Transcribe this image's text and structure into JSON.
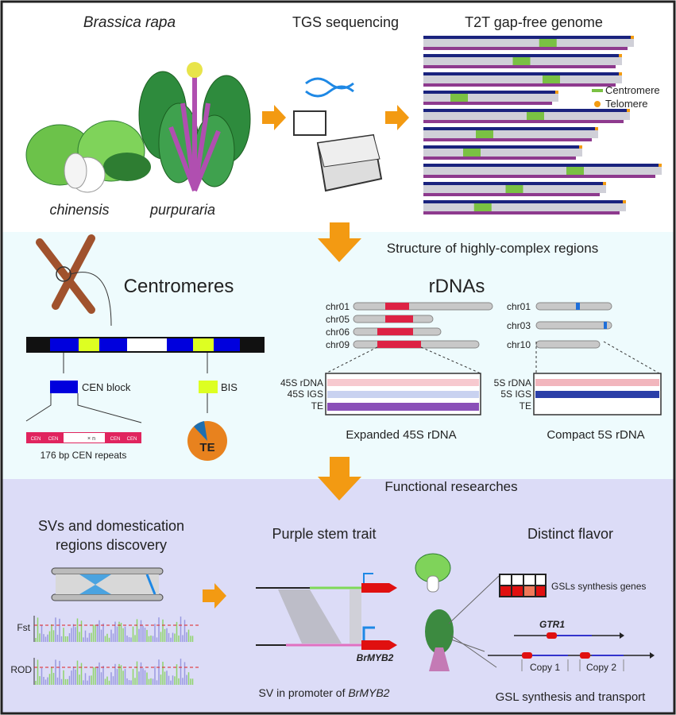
{
  "top": {
    "species_label": "Brassica rapa",
    "subspecies": [
      "chinensis",
      "purpuraria"
    ],
    "sequencing_label": "TGS sequencing",
    "genome_label": "T2T gap-free genome",
    "legend": [
      {
        "label": "Centromere",
        "color": "#7ac143"
      },
      {
        "label": "Telomere",
        "color": "#f39c12"
      }
    ]
  },
  "middle": {
    "section_title": "Structure of highly-complex regions",
    "centromeres": {
      "title": "Centromeres",
      "cen_block_label": "CEN block",
      "bis_label": "BIS",
      "cen_unit": "CEN",
      "repeat_marker": "× n",
      "repeats_label": "176 bp CEN repeats",
      "pie_label": "TE"
    },
    "rdnas": {
      "title": "rDNAs",
      "left_chromosomes": [
        "chr01",
        "chr05",
        "chr06",
        "chr09"
      ],
      "right_chromosomes": [
        "chr01",
        "chr03",
        "chr10"
      ],
      "left_tracks": [
        "45S rDNA",
        "45S IGS",
        "TE"
      ],
      "right_tracks": [
        "5S rDNA",
        "5S IGS",
        "TE"
      ],
      "left_caption": "Expanded 45S rDNA",
      "right_caption": "Compact 5S rDNA"
    }
  },
  "bottom": {
    "section_title": "Functional researches",
    "svs_title_line1": "SVs and domestication",
    "svs_title_line2": "regions discovery",
    "fst_label": "Fst",
    "rod_label": "ROD",
    "purple_title": "Purple stem trait",
    "gene_label": "BrMYB2",
    "purple_caption_prefix": "SV in promoter of ",
    "purple_caption_gene": "BrMYB2",
    "flavor_title": "Distinct flavor",
    "gsl_genes_label": "GSLs synthesis genes",
    "gtr1_label": "GTR1",
    "copy1_label": "Copy 1",
    "copy2_label": "Copy 2",
    "flavor_caption": "GSL synthesis and transport"
  },
  "colors": {
    "arrow": "#f39a12",
    "middle_bg": "#eefbfd",
    "bottom_bg": "#dcdcf7",
    "cen_blue": "#0000dd",
    "bis_yellow": "#ddff22",
    "rdna_red": "#dd2244"
  }
}
